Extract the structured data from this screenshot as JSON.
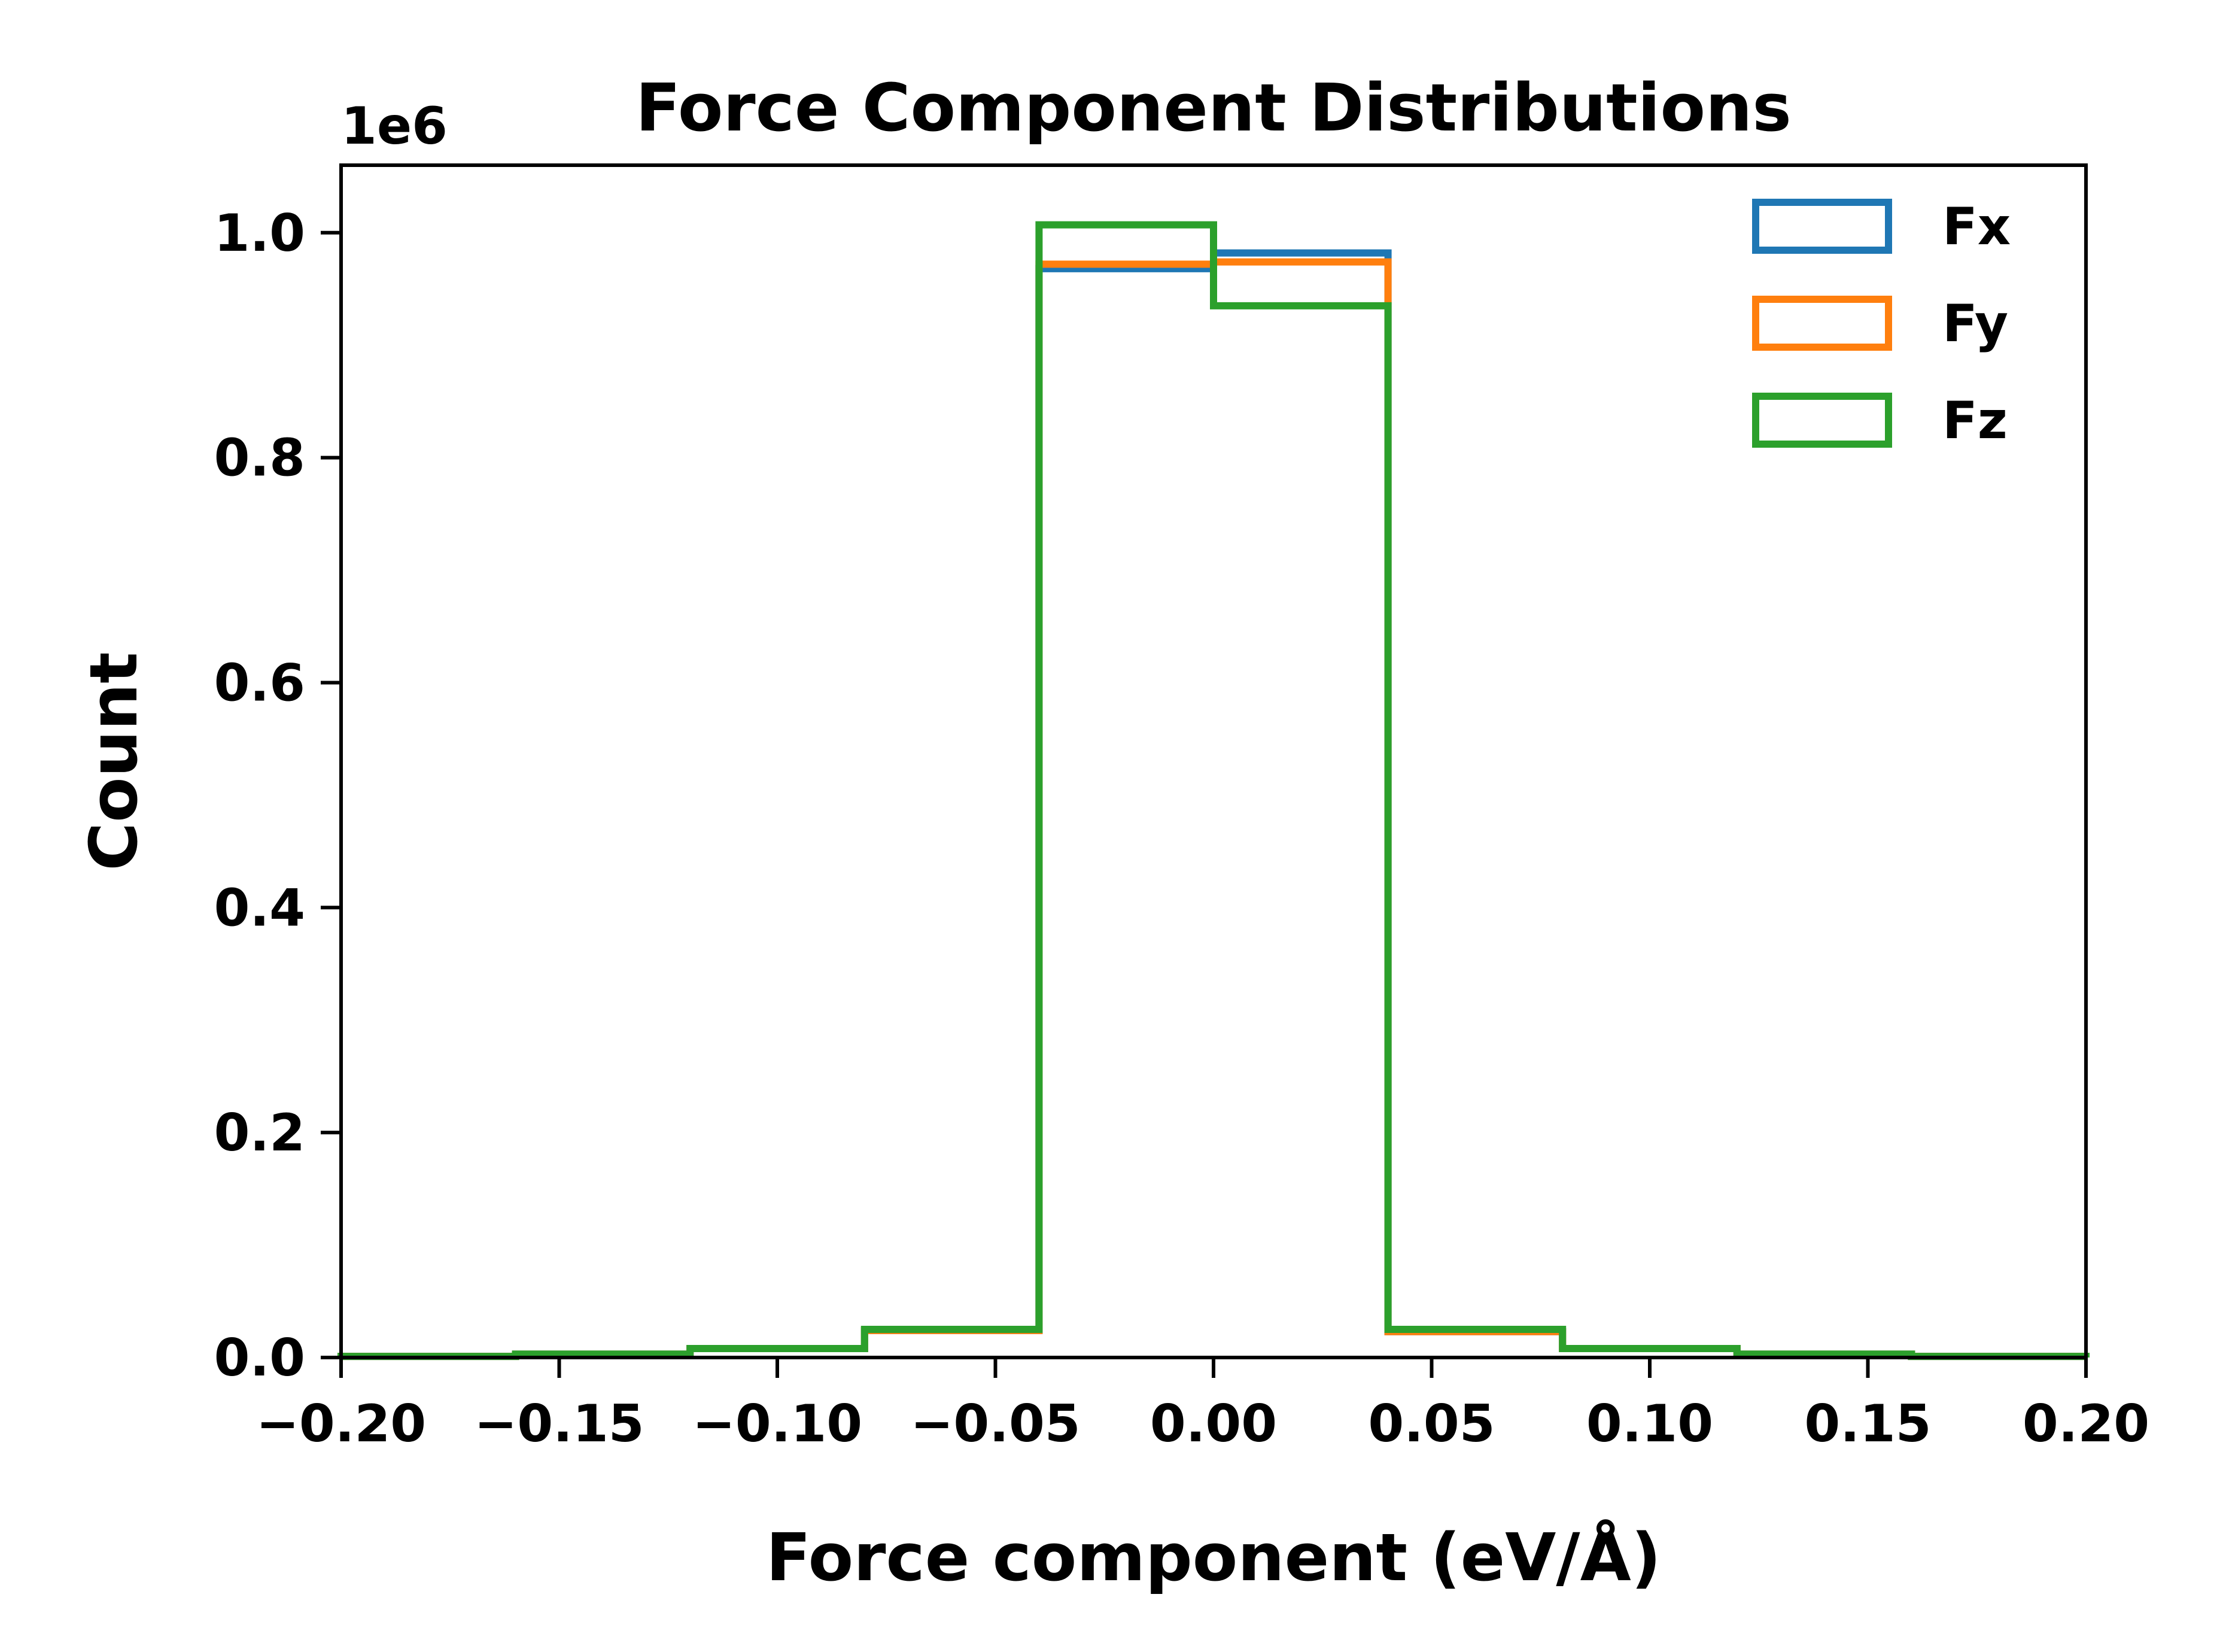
{
  "chart_data": {
    "type": "histogram",
    "title": "Force Component Distributions",
    "xlabel": "Force component (eV/Å)",
    "ylabel": "Count",
    "y_offset_label": "1e6",
    "xlim": [
      -0.2,
      0.2
    ],
    "ylim": [
      0,
      1.06
    ],
    "x_ticks": [
      -0.2,
      -0.15,
      -0.1,
      -0.05,
      0.0,
      0.05,
      0.1,
      0.15,
      0.2
    ],
    "x_tick_labels": [
      "−0.20",
      "−0.15",
      "−0.10",
      "−0.05",
      "0.00",
      "0.05",
      "0.10",
      "0.15",
      "0.20"
    ],
    "y_ticks": [
      0.0,
      0.2,
      0.4,
      0.6,
      0.8,
      1.0
    ],
    "y_tick_labels": [
      "0.0",
      "0.2",
      "0.4",
      "0.6",
      "0.8",
      "1.0"
    ],
    "grid": false,
    "legend_position": "top-right",
    "bin_edges": [
      -0.2,
      -0.16,
      -0.12,
      -0.08,
      -0.04,
      0.0,
      0.04,
      0.08,
      0.12,
      0.16,
      0.2
    ],
    "series": [
      {
        "name": "Fx",
        "color": "#1f77b4",
        "values": [
          0.001,
          0.003,
          0.008,
          0.024,
          0.968,
          0.982,
          0.023,
          0.008,
          0.003,
          0.001
        ]
      },
      {
        "name": "Fy",
        "color": "#ff7f0e",
        "values": [
          0.001,
          0.003,
          0.008,
          0.024,
          0.972,
          0.974,
          0.023,
          0.008,
          0.003,
          0.001
        ]
      },
      {
        "name": "Fz",
        "color": "#2ca02c",
        "values": [
          0.001,
          0.003,
          0.008,
          0.025,
          1.007,
          0.935,
          0.025,
          0.008,
          0.003,
          0.001
        ]
      }
    ]
  }
}
